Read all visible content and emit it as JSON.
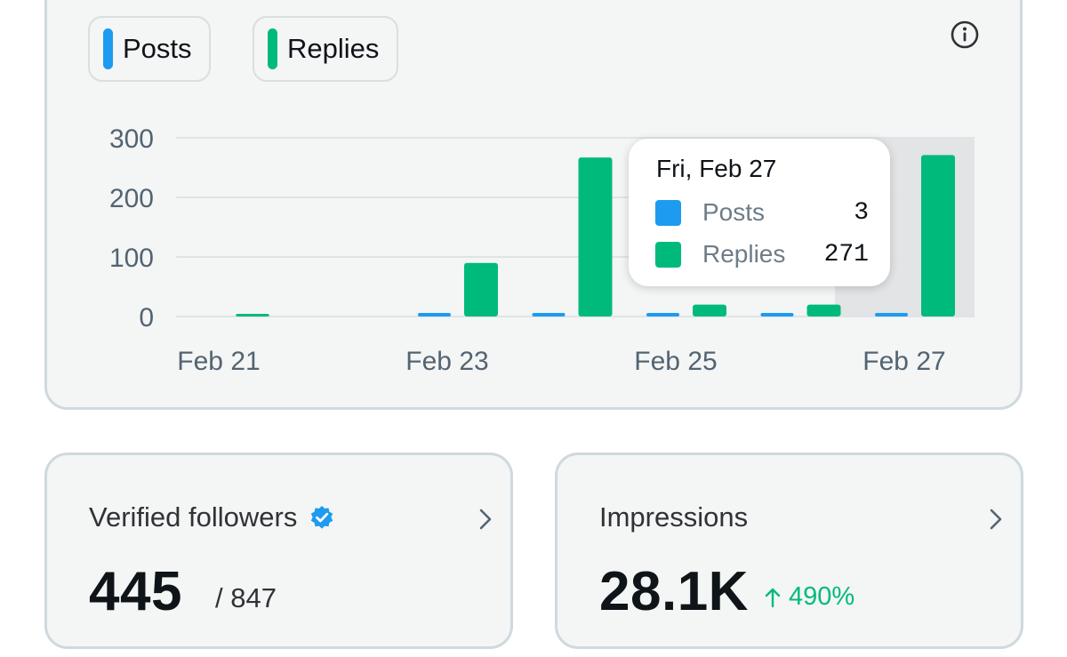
{
  "legend": {
    "posts_label": "Posts",
    "replies_label": "Replies"
  },
  "colors": {
    "posts": "#1d9bf0",
    "replies": "#00ba7c",
    "grid": "#dfe4e7",
    "highlight": "#e2e4e6",
    "verified_badge": "#1d9bf0",
    "positive_change": "#00ba7c"
  },
  "icons": {
    "info": "info-circle-icon",
    "verified": "verified-badge-icon",
    "chevron": "chevron-right-icon",
    "up_arrow": "arrow-up-icon"
  },
  "chart_data": {
    "type": "bar",
    "categories": [
      "Feb 21",
      "Feb 22",
      "Feb 23",
      "Feb 24",
      "Feb 25",
      "Feb 26",
      "Feb 27"
    ],
    "x_tick_labels": [
      "Feb 21",
      "Feb 23",
      "Feb 25",
      "Feb 27"
    ],
    "series": [
      {
        "name": "Posts",
        "values": [
          0,
          0,
          3,
          3,
          3,
          3,
          3
        ]
      },
      {
        "name": "Replies",
        "values": [
          2,
          0,
          90,
          267,
          20,
          20,
          271
        ]
      }
    ],
    "yticks": [
      0,
      100,
      200,
      300
    ],
    "ylim": [
      0,
      300
    ],
    "highlighted_category": "Feb 27",
    "legend": [
      "Posts",
      "Replies"
    ]
  },
  "tooltip": {
    "date": "Fri, Feb 27",
    "posts_label": "Posts",
    "posts_value": "3",
    "replies_label": "Replies",
    "replies_value": "271"
  },
  "followers": {
    "title": "Verified followers",
    "value": "445",
    "total": "/ 847"
  },
  "impressions": {
    "title": "Impressions",
    "value": "28.1K",
    "change": "490%"
  }
}
